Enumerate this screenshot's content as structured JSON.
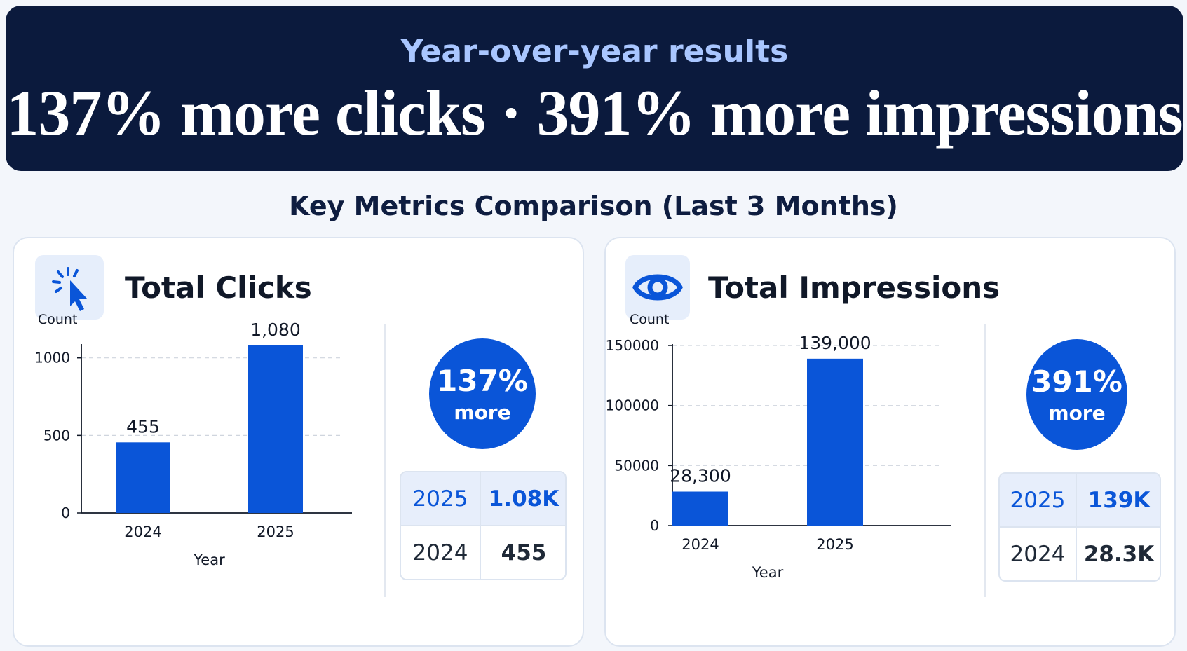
{
  "hero": {
    "subtitle": "Year-over-year results",
    "headline": "137% more clicks · 391% more impressions"
  },
  "section_title": "Key Metrics Comparison (Last 3 Months)",
  "colors": {
    "bar": "#0a55d8",
    "hero_bg": "#0b1a3d",
    "accent_text": "#a9c6ff"
  },
  "cards": [
    {
      "title": "Total Clicks",
      "icon": "cursor-click-icon",
      "badge": {
        "pct": "137%",
        "label": "more"
      },
      "summary": [
        {
          "year": "2025",
          "value": "1.08K"
        },
        {
          "year": "2024",
          "value": "455"
        }
      ]
    },
    {
      "title": "Total Impressions",
      "icon": "eye-icon",
      "badge": {
        "pct": "391%",
        "label": "more"
      },
      "summary": [
        {
          "year": "2025",
          "value": "139K"
        },
        {
          "year": "2024",
          "value": "28.3K"
        }
      ]
    }
  ],
  "chart_data": [
    {
      "type": "bar",
      "title": "Total Clicks",
      "categories": [
        "2024",
        "2025"
      ],
      "values": [
        455,
        1080
      ],
      "value_labels": [
        "455",
        "1,080"
      ],
      "xlabel": "Year",
      "ylabel": "Count",
      "ylim": [
        0,
        1080
      ],
      "yticks": [
        0,
        500,
        1000
      ],
      "ytick_labels": [
        "0",
        "500",
        "1000"
      ],
      "grid": true
    },
    {
      "type": "bar",
      "title": "Total Impressions",
      "categories": [
        "2024",
        "2025"
      ],
      "values": [
        28300,
        139000
      ],
      "value_labels": [
        "28,300",
        "139,000"
      ],
      "xlabel": "Year",
      "ylabel": "Count",
      "ylim": [
        0,
        150000
      ],
      "yticks": [
        0,
        50000,
        100000,
        150000
      ],
      "ytick_labels": [
        "0",
        "50000",
        "100000",
        "150000"
      ],
      "grid": true
    }
  ]
}
